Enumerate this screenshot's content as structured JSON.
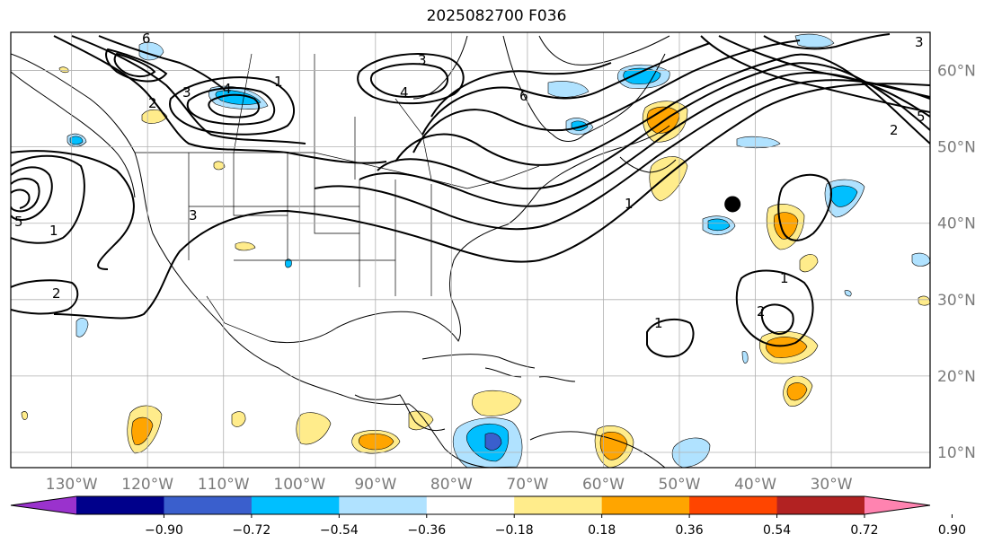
{
  "title": "2025082700 F036",
  "map": {
    "projection": "cylindrical",
    "lon_range": [
      -138,
      -17
    ],
    "lat_range": [
      8,
      65
    ],
    "lat_ticks": [
      {
        "value": 10,
        "label": "10°N"
      },
      {
        "value": 20,
        "label": "20°N"
      },
      {
        "value": 30,
        "label": "30°N"
      },
      {
        "value": 40,
        "label": "40°N"
      },
      {
        "value": 50,
        "label": "50°N"
      },
      {
        "value": 60,
        "label": "60°N"
      }
    ],
    "lon_ticks": [
      {
        "value": -130,
        "label": "130°W"
      },
      {
        "value": -120,
        "label": "120°W"
      },
      {
        "value": -110,
        "label": "110°W"
      },
      {
        "value": -100,
        "label": "100°W"
      },
      {
        "value": -90,
        "label": "90°W"
      },
      {
        "value": -80,
        "label": "80°W"
      },
      {
        "value": -70,
        "label": "70°W"
      },
      {
        "value": -60,
        "label": "60°W"
      },
      {
        "value": -50,
        "label": "50°W"
      },
      {
        "value": -40,
        "label": "40°W"
      },
      {
        "value": -30,
        "label": "30°W"
      }
    ],
    "grid": true,
    "storm_marker": {
      "lon": -43,
      "lat": 42.5
    }
  },
  "colorbar": {
    "colors": [
      "#9a32cd",
      "#00008b",
      "#3a5fcd",
      "#00bfff",
      "#b0e2ff",
      "#ffffff",
      "#ffec8b",
      "#ffa500",
      "#ff4500",
      "#b22222",
      "#ff83b0"
    ],
    "labels": [
      "−0.90",
      "−0.72",
      "−0.54",
      "−0.36",
      "−0.18",
      "0.18",
      "0.36",
      "0.54",
      "0.72",
      "0.90"
    ]
  },
  "contour_labels": [
    "6",
    "3",
    "1",
    "2",
    "4",
    "5",
    "1",
    "3",
    "2",
    "3",
    "4",
    "5",
    "6",
    "3",
    "2",
    "1",
    "1",
    "2",
    "1"
  ]
}
